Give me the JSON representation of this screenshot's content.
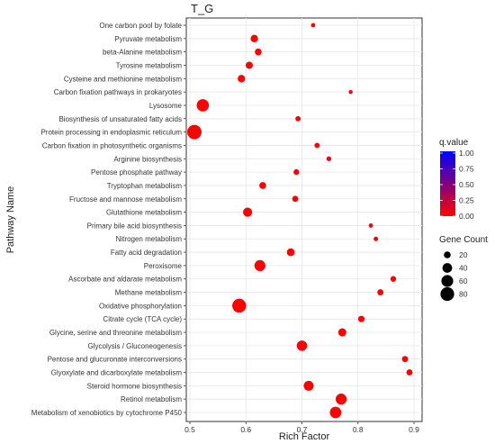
{
  "chart_data": {
    "type": "scatter",
    "title": "T_G",
    "xlabel": "Rich Factor",
    "ylabel": "Pathway Name",
    "xlim": [
      0.5,
      0.9
    ],
    "x_ticks": [
      "0.5",
      "0.6",
      "0.7",
      "0.8",
      "0.9"
    ],
    "grid": true,
    "legend_placement": "right",
    "color_legend": {
      "title": "q.value",
      "ticks": [
        "1.00",
        "0.75",
        "0.50",
        "0.25",
        "0.00"
      ],
      "low_color": "#ff0000",
      "high_color": "#0000ff"
    },
    "size_legend": {
      "title": "Gene Count",
      "values": [
        20,
        40,
        60,
        80
      ],
      "labels": [
        "20",
        "40",
        "60",
        "80"
      ]
    },
    "points": [
      {
        "pathway": "One carbon pool by folate",
        "rich_factor": 0.72,
        "gene_count": 8,
        "q_value": 0.02
      },
      {
        "pathway": "Pyruvate metabolism",
        "rich_factor": 0.615,
        "gene_count": 24,
        "q_value": 0.0
      },
      {
        "pathway": "beta-Alanine metabolism",
        "rich_factor": 0.622,
        "gene_count": 20,
        "q_value": 0.0
      },
      {
        "pathway": "Tyrosine metabolism",
        "rich_factor": 0.606,
        "gene_count": 22,
        "q_value": 0.0
      },
      {
        "pathway": "Cysteine and methionine metabolism",
        "rich_factor": 0.592,
        "gene_count": 24,
        "q_value": 0.0
      },
      {
        "pathway": "Carbon fixation pathways in prokaryotes",
        "rich_factor": 0.787,
        "gene_count": 6,
        "q_value": 0.05
      },
      {
        "pathway": "Lysosome",
        "rich_factor": 0.523,
        "gene_count": 64,
        "q_value": 0.0
      },
      {
        "pathway": "Biosynthesis of unsaturated fatty acids",
        "rich_factor": 0.693,
        "gene_count": 12,
        "q_value": 0.02
      },
      {
        "pathway": "Protein processing in endoplasmic reticulum",
        "rich_factor": 0.508,
        "gene_count": 88,
        "q_value": 0.0
      },
      {
        "pathway": "Carbon fixation in photosynthetic organisms",
        "rich_factor": 0.727,
        "gene_count": 12,
        "q_value": 0.02
      },
      {
        "pathway": "Arginine biosynthesis",
        "rich_factor": 0.748,
        "gene_count": 10,
        "q_value": 0.03
      },
      {
        "pathway": "Pentose phosphate pathway",
        "rich_factor": 0.69,
        "gene_count": 14,
        "q_value": 0.02
      },
      {
        "pathway": "Tryptophan metabolism",
        "rich_factor": 0.63,
        "gene_count": 20,
        "q_value": 0.01
      },
      {
        "pathway": "Fructose and mannose metabolism",
        "rich_factor": 0.688,
        "gene_count": 16,
        "q_value": 0.01
      },
      {
        "pathway": "Glutathione metabolism",
        "rich_factor": 0.603,
        "gene_count": 36,
        "q_value": 0.0
      },
      {
        "pathway": "Primary bile acid biosynthesis",
        "rich_factor": 0.823,
        "gene_count": 8,
        "q_value": 0.03
      },
      {
        "pathway": "Nitrogen metabolism",
        "rich_factor": 0.832,
        "gene_count": 9,
        "q_value": 0.03
      },
      {
        "pathway": "Fatty acid degradation",
        "rich_factor": 0.68,
        "gene_count": 26,
        "q_value": 0.0
      },
      {
        "pathway": "Peroxisome",
        "rich_factor": 0.625,
        "gene_count": 52,
        "q_value": 0.0
      },
      {
        "pathway": "Ascorbate and aldarate metabolism",
        "rich_factor": 0.863,
        "gene_count": 14,
        "q_value": 0.02
      },
      {
        "pathway": "Methane metabolism",
        "rich_factor": 0.84,
        "gene_count": 16,
        "q_value": 0.02
      },
      {
        "pathway": "Oxidative phosphorylation",
        "rich_factor": 0.588,
        "gene_count": 82,
        "q_value": 0.0
      },
      {
        "pathway": "Citrate cycle (TCA cycle)",
        "rich_factor": 0.806,
        "gene_count": 18,
        "q_value": 0.01
      },
      {
        "pathway": "Glycine, serine and threonine metabolism",
        "rich_factor": 0.772,
        "gene_count": 28,
        "q_value": 0.0
      },
      {
        "pathway": "Glycolysis / Gluconeogenesis",
        "rich_factor": 0.7,
        "gene_count": 46,
        "q_value": 0.0
      },
      {
        "pathway": "Pentose and glucuronate interconversions",
        "rich_factor": 0.884,
        "gene_count": 16,
        "q_value": 0.02
      },
      {
        "pathway": "Glyoxylate and dicarboxylate metabolism",
        "rich_factor": 0.892,
        "gene_count": 16,
        "q_value": 0.02
      },
      {
        "pathway": "Steroid hormone biosynthesis",
        "rich_factor": 0.712,
        "gene_count": 42,
        "q_value": 0.0
      },
      {
        "pathway": "Retinol metabolism",
        "rich_factor": 0.77,
        "gene_count": 52,
        "q_value": 0.0
      },
      {
        "pathway": "Metabolism of xenobiotics by cytochrome P450",
        "rich_factor": 0.76,
        "gene_count": 56,
        "q_value": 0.0
      }
    ]
  }
}
